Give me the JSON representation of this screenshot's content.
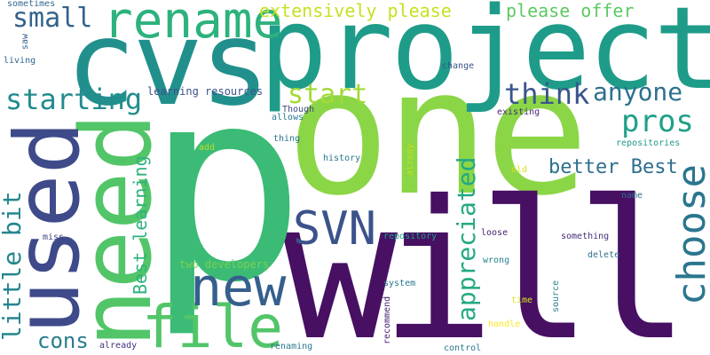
{
  "word_cloud": {
    "words": [
      {
        "text": "one",
        "color": "#8bd646"
      },
      {
        "text": "will",
        "color": "#471063"
      },
      {
        "text": "p",
        "color": "#3bbb75"
      },
      {
        "text": "project",
        "color": "#1e9c89"
      },
      {
        "text": "cvs",
        "color": "#21908d"
      },
      {
        "text": "need",
        "color": "#52c569"
      },
      {
        "text": "used",
        "color": "#3e4a89"
      },
      {
        "text": "rename",
        "color": "#2db27d"
      },
      {
        "text": "file",
        "color": "#52c569"
      },
      {
        "text": "new",
        "color": "#355f8d"
      },
      {
        "text": "SVN",
        "color": "#3b528b"
      },
      {
        "text": "choose",
        "color": "#2a768e"
      },
      {
        "text": "appreciated",
        "color": "#23a983"
      },
      {
        "text": "starting",
        "color": "#228c8d"
      },
      {
        "text": "start",
        "color": "#a2da37"
      },
      {
        "text": "small",
        "color": "#33638d"
      },
      {
        "text": "think",
        "color": "#39558c"
      },
      {
        "text": "anyone",
        "color": "#2c718e"
      },
      {
        "text": "pros",
        "color": "#1fa088"
      },
      {
        "text": "little bit",
        "color": "#24868e"
      },
      {
        "text": "extensively please",
        "color": "#c8e020"
      },
      {
        "text": "please offer",
        "color": "#5ec962"
      },
      {
        "text": "better Best",
        "color": "#2e6f8e"
      },
      {
        "text": "Best learning",
        "color": "#2db27d"
      },
      {
        "text": "cons",
        "color": "#287c8e"
      },
      {
        "text": "learning resources",
        "color": "#3b528b"
      },
      {
        "text": "two developers",
        "color": "#7ad151"
      },
      {
        "text": "sometimes",
        "color": "#31688e"
      },
      {
        "text": "saw",
        "color": "#355f8d"
      },
      {
        "text": "living",
        "color": "#31688e"
      },
      {
        "text": "change",
        "color": "#3b528b"
      },
      {
        "text": "allows",
        "color": "#2a788e"
      },
      {
        "text": "Though",
        "color": "#404688"
      },
      {
        "text": "existing",
        "color": "#482878"
      },
      {
        "text": "thing",
        "color": "#2c728e"
      },
      {
        "text": "add",
        "color": "#b5de2b"
      },
      {
        "text": "alredy",
        "color": "#c2df23"
      },
      {
        "text": "repositories",
        "color": "#1f9a8a"
      },
      {
        "text": "history",
        "color": "#2a788e"
      },
      {
        "text": "old",
        "color": "#d8e219"
      },
      {
        "text": "name",
        "color": "#2e6e8e"
      },
      {
        "text": "miss",
        "color": "#414487"
      },
      {
        "text": "repository",
        "color": "#1f9e89"
      },
      {
        "text": "loose",
        "color": "#481b6d"
      },
      {
        "text": "something",
        "color": "#472c7a"
      },
      {
        "text": "wrong",
        "color": "#25848e"
      },
      {
        "text": "delete",
        "color": "#2c728e"
      },
      {
        "text": "system",
        "color": "#2a788e"
      },
      {
        "text": "time",
        "color": "#d8e219"
      },
      {
        "text": "source",
        "color": "#26828e"
      },
      {
        "text": "recommend",
        "color": "#482173"
      },
      {
        "text": "handle",
        "color": "#fde725"
      },
      {
        "text": "renaming",
        "color": "#2a788e"
      },
      {
        "text": "already",
        "color": "#46327e"
      },
      {
        "text": "control",
        "color": "#2a788e"
      }
    ]
  }
}
